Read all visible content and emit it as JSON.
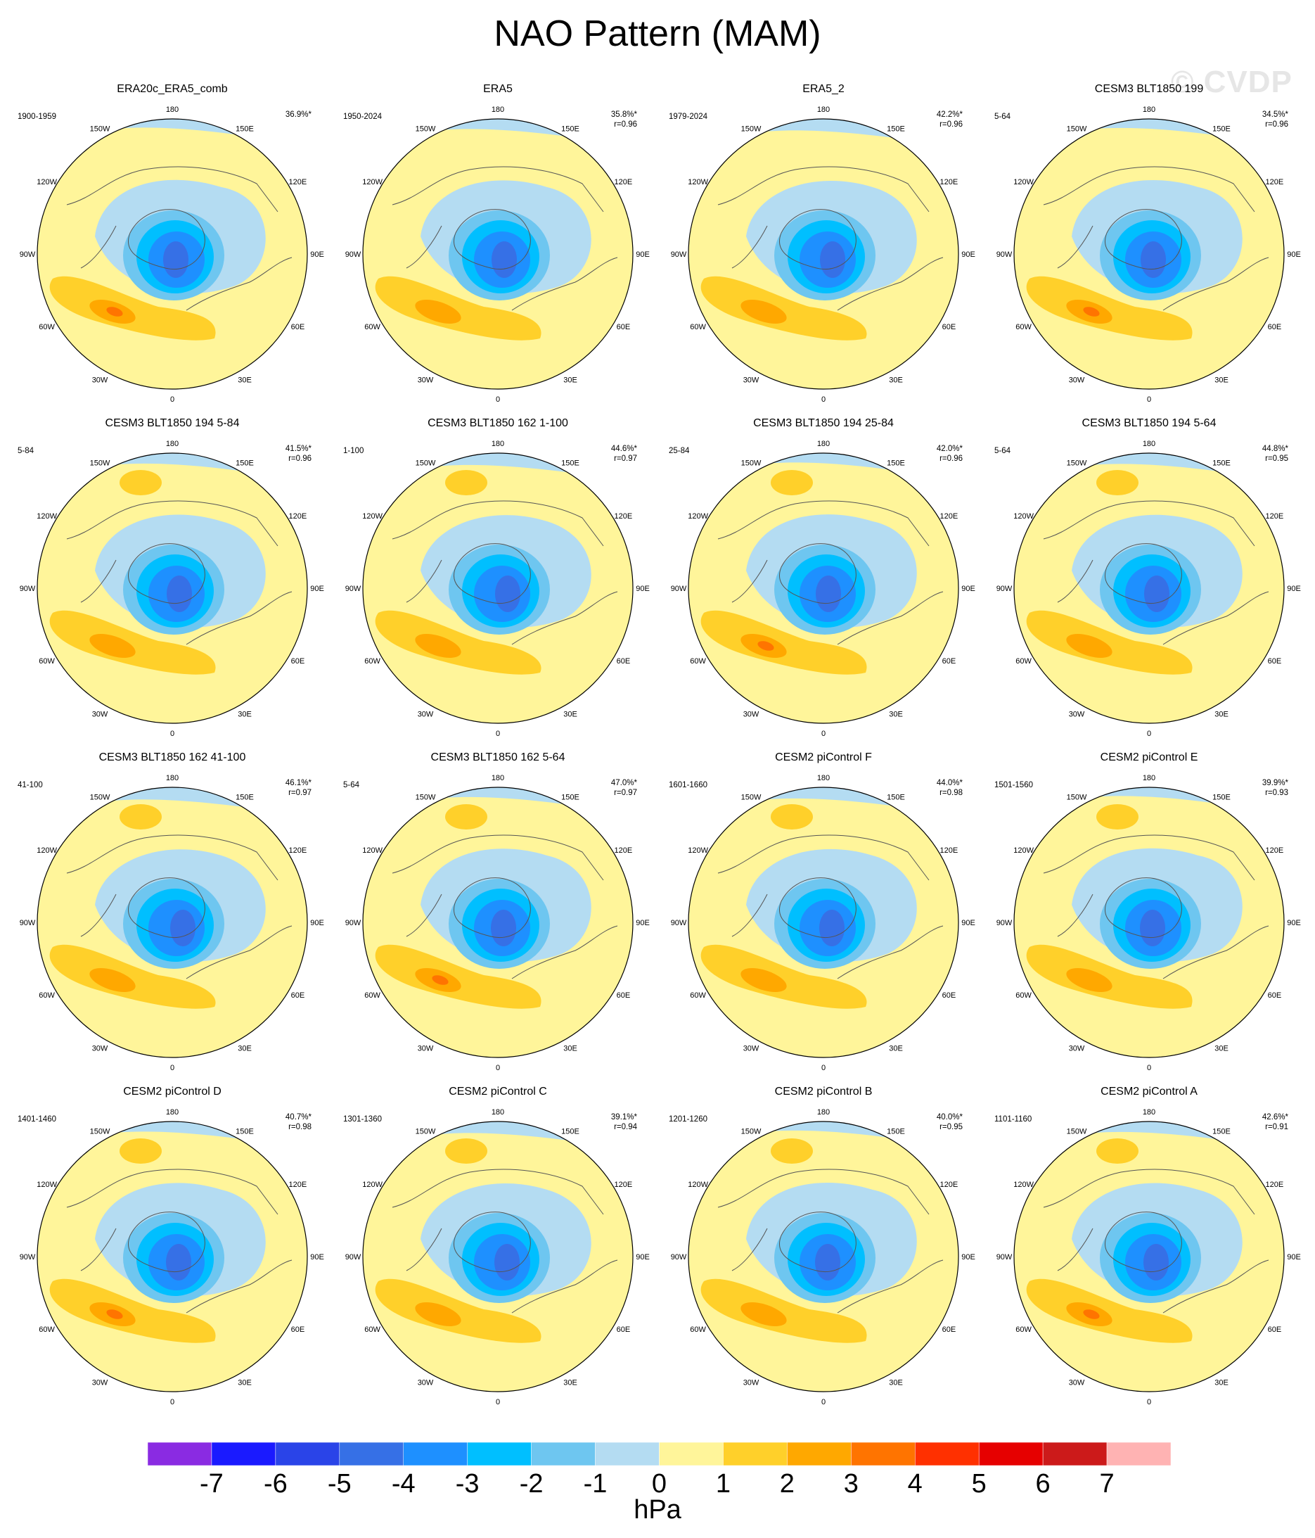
{
  "title": "NAO Pattern (MAM)",
  "watermark": "© CVDP",
  "panels": [
    {
      "name": "ERA20c_ERA5_comb",
      "period": "1900-1959",
      "pct": "36.9%*",
      "r": ""
    },
    {
      "name": "ERA5",
      "period": "1950-2024",
      "pct": "35.8%*",
      "r": "r=0.96"
    },
    {
      "name": "ERA5_2",
      "period": "1979-2024",
      "pct": "42.2%*",
      "r": "r=0.96"
    },
    {
      "name": "CESM3 BLT1850 199",
      "period": "5-64",
      "pct": "34.5%*",
      "r": "r=0.96"
    },
    {
      "name": "CESM3 BLT1850 194 5-84",
      "period": "5-84",
      "pct": "41.5%*",
      "r": "r=0.96"
    },
    {
      "name": "CESM3 BLT1850 162 1-100",
      "period": "1-100",
      "pct": "44.6%*",
      "r": "r=0.97"
    },
    {
      "name": "CESM3 BLT1850 194 25-84",
      "period": "25-84",
      "pct": "42.0%*",
      "r": "r=0.96"
    },
    {
      "name": "CESM3 BLT1850 194 5-64",
      "period": "5-64",
      "pct": "44.8%*",
      "r": "r=0.95"
    },
    {
      "name": "CESM3 BLT1850 162 41-100",
      "period": "41-100",
      "pct": "46.1%*",
      "r": "r=0.97"
    },
    {
      "name": "CESM3 BLT1850 162 5-64",
      "period": "5-64",
      "pct": "47.0%*",
      "r": "r=0.97"
    },
    {
      "name": "CESM2 piControl F",
      "period": "1601-1660",
      "pct": "44.0%*",
      "r": "r=0.98"
    },
    {
      "name": "CESM2 piControl E",
      "period": "1501-1560",
      "pct": "39.9%*",
      "r": "r=0.93"
    },
    {
      "name": "CESM2 piControl D",
      "period": "1401-1460",
      "pct": "40.7%*",
      "r": "r=0.98"
    },
    {
      "name": "CESM2 piControl C",
      "period": "1301-1360",
      "pct": "39.1%*",
      "r": "r=0.94"
    },
    {
      "name": "CESM2 piControl B",
      "period": "1201-1260",
      "pct": "40.0%*",
      "r": "r=0.95"
    },
    {
      "name": "CESM2 piControl A",
      "period": "1101-1160",
      "pct": "42.6%*",
      "r": "r=0.91"
    }
  ],
  "longitude_labels": [
    "180",
    "150E",
    "120E",
    "90E",
    "60E",
    "30E",
    "0",
    "30W",
    "60W",
    "90W",
    "120W",
    "150W"
  ],
  "colorbar": {
    "colors": [
      "#8a2be2",
      "#1a1aff",
      "#2a44e8",
      "#3670e6",
      "#1e90ff",
      "#00bfff",
      "#6ec6f0",
      "#b4dcf2",
      "#fff59a",
      "#ffd02a",
      "#ffa800",
      "#ff7400",
      "#ff3000",
      "#e60000",
      "#cc1a1a",
      "#ffb3b3"
    ],
    "labels": [
      "-7",
      "-6",
      "-5",
      "-4",
      "-3",
      "-2",
      "-1",
      "0",
      "1",
      "2",
      "3",
      "4",
      "5",
      "6",
      "7"
    ],
    "units": "hPa"
  }
}
